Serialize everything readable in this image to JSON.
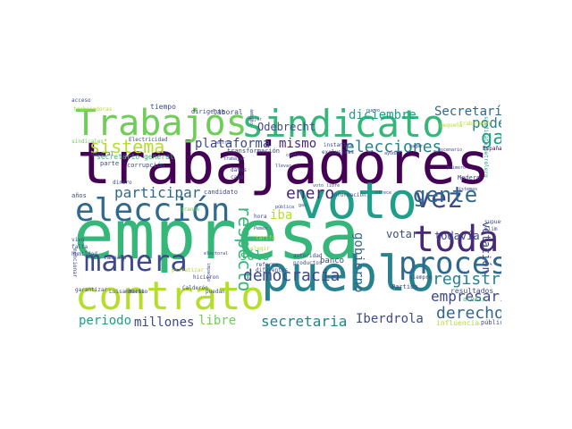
{
  "colors": {
    "dark_purple": "#440154",
    "purple": "#482878",
    "indigo": "#3e4989",
    "blue": "#31688e",
    "teal_blue": "#26828e",
    "teal": "#1f9e89",
    "green": "#35b779",
    "light_green": "#6ece58",
    "lime": "#b5de2b",
    "yellow": "#fde725"
  },
  "words": [
    {
      "text": "trabajadores",
      "color": "#440154"
    },
    {
      "text": "empresa",
      "color": "#35b779"
    },
    {
      "text": "voto",
      "color": "#1f9e89"
    },
    {
      "text": "pueblo",
      "color": "#26828e"
    },
    {
      "text": "sindicato",
      "color": "#35b779"
    },
    {
      "text": "Trabajos",
      "color": "#6ece58"
    },
    {
      "text": "elección",
      "color": "#31688e"
    },
    {
      "text": "contrato",
      "color": "#b5de2b"
    },
    {
      "text": "toda",
      "color": "#482878"
    },
    {
      "text": "proceso",
      "color": "#31688e"
    },
    {
      "text": "vez",
      "color": "#3e4989"
    },
    {
      "text": "gente",
      "color": "#31688e"
    },
    {
      "text": "manera",
      "color": "#3e4989"
    },
    {
      "text": "sistema",
      "color": "#b5de2b"
    },
    {
      "text": "plataforma",
      "color": "#3e4989"
    },
    {
      "text": "mismo",
      "color": "#482878"
    },
    {
      "text": "elecciones",
      "color": "#26828e"
    },
    {
      "text": "gas",
      "color": "#1f9e89"
    },
    {
      "text": "poder",
      "color": "#26828e"
    },
    {
      "text": "Secretaría",
      "color": "#31688e"
    },
    {
      "text": "diciembre",
      "color": "#1f9e89"
    },
    {
      "text": "Odebrecht",
      "color": "#3e4989"
    },
    {
      "text": "participar",
      "color": "#31688e"
    },
    {
      "text": "enero",
      "color": "#482878"
    },
    {
      "text": "respecto",
      "color": "#35b779"
    },
    {
      "text": "iba",
      "color": "#b5de2b"
    },
    {
      "text": "votar",
      "color": "#3e4989"
    },
    {
      "text": "todavía",
      "color": "#3e4989"
    },
    {
      "text": "votación",
      "color": "#3e4989"
    },
    {
      "text": "registro",
      "color": "#26828e"
    },
    {
      "text": "empresario",
      "color": "#3e4989"
    },
    {
      "text": "derecho",
      "color": "#31688e"
    },
    {
      "text": "democracia",
      "color": "#3e4989"
    },
    {
      "text": "sólo",
      "color": "#35b779"
    },
    {
      "text": "gobierno",
      "color": "#31688e"
    },
    {
      "text": "secretaria",
      "color": "#26828e"
    },
    {
      "text": "Iberdrola",
      "color": "#3e4989"
    },
    {
      "text": "millones",
      "color": "#3e4989"
    },
    {
      "text": "libre",
      "color": "#6ece58"
    },
    {
      "text": "periodo",
      "color": "#1f9e89"
    },
    {
      "text": "banco",
      "color": "#3e4989"
    },
    {
      "text": "resultados",
      "color": "#3e4989"
    },
    {
      "text": "acudir",
      "color": "#35b779"
    },
    {
      "text": "público",
      "color": "#3e4989"
    },
    {
      "text": "influencia",
      "color": "#b5de2b"
    },
    {
      "text": "Partido",
      "color": "#3e4989"
    },
    {
      "text": "siempre",
      "color": "#3e4989"
    },
    {
      "text": "trabajadoras",
      "color": "#b5de2b"
    },
    {
      "text": "tiempo",
      "color": "#3e4989"
    },
    {
      "text": "dirigente",
      "color": "#3e4989"
    },
    {
      "text": "laboral",
      "color": "#3e4989"
    },
    {
      "text": "secretario general",
      "color": "#35b779"
    },
    {
      "text": "sindicales",
      "color": "#6ece58"
    },
    {
      "text": "Electricidad",
      "color": "#3e4989"
    },
    {
      "text": "trabajador",
      "color": "#b5de2b"
    },
    {
      "text": "España",
      "color": "#440154"
    },
    {
      "text": "sindicato petrolero",
      "color": "#1f9e89"
    },
    {
      "text": "corrupción",
      "color": "#3e4989"
    },
    {
      "text": "transformación",
      "color": "#3e4989"
    },
    {
      "text": "parte",
      "color": "#3e4989"
    },
    {
      "text": "general",
      "color": "#3e4989"
    },
    {
      "text": "dinero",
      "color": "#3e4989"
    },
    {
      "text": "candidato",
      "color": "#3e4989"
    },
    {
      "text": "datos",
      "color": "#3e4989"
    },
    {
      "text": "cabo",
      "color": "#3e4989"
    },
    {
      "text": "Madero",
      "color": "#3e4989"
    },
    {
      "text": "información",
      "color": "#3e4989"
    },
    {
      "text": "años",
      "color": "#3e4989"
    },
    {
      "text": "vivo",
      "color": "#3e4989"
    },
    {
      "text": "falta",
      "color": "#3e4989"
    },
    {
      "text": "campaña",
      "color": "#3e4989"
    },
    {
      "text": "hora",
      "color": "#3e4989"
    },
    {
      "text": "Luisa María",
      "color": "#3e4989"
    },
    {
      "text": "garantizar",
      "color": "#3e4989"
    },
    {
      "text": "momento",
      "color": "#3e4989"
    },
    {
      "text": "hicieron",
      "color": "#3e4989"
    },
    {
      "text": "Calderón",
      "color": "#3e4989"
    },
    {
      "text": "puedan",
      "color": "#3e4989"
    },
    {
      "text": "autoridad",
      "color": "#3e4989"
    },
    {
      "text": "reforma",
      "color": "#3e4989"
    },
    {
      "text": "diferentes",
      "color": "#3e4989"
    },
    {
      "text": "productos",
      "color": "#3e4989"
    },
    {
      "text": "grande",
      "color": "#6ece58"
    },
    {
      "text": "Slim",
      "color": "#3e4989"
    },
    {
      "text": "supuesto",
      "color": "#3e4989"
    },
    {
      "text": "mejor",
      "color": "#3e4989"
    },
    {
      "text": "ámbito",
      "color": "#3e4989"
    },
    {
      "text": "instantes",
      "color": "#3e4989"
    },
    {
      "text": "exclusivas",
      "color": "#3e4989"
    },
    {
      "text": "pequeña",
      "color": "#b5de2b"
    },
    {
      "text": "privatizar",
      "color": "#b5de2b"
    },
    {
      "text": "elegir",
      "color": "#b5de2b"
    },
    {
      "text": "tarifa",
      "color": "#b5de2b"
    },
    {
      "text": "humildad",
      "color": "#3e4989"
    },
    {
      "text": "mencionar",
      "color": "#3e4989"
    },
    {
      "text": "nuevo",
      "color": "#3e4989"
    },
    {
      "text": "ofrece",
      "color": "#3e4989"
    },
    {
      "text": "ayudar",
      "color": "#3e4989"
    },
    {
      "text": "pagar",
      "color": "#3e4989"
    },
    {
      "text": "escenario",
      "color": "#3e4989"
    },
    {
      "text": "primero",
      "color": "#3e4989"
    },
    {
      "text": "sistemas",
      "color": "#3e4989"
    },
    {
      "text": "electoral",
      "color": "#3e4989"
    },
    {
      "text": "impacto",
      "color": "#3e4989"
    },
    {
      "text": "entrar",
      "color": "#3e4989"
    },
    {
      "text": "Pemex",
      "color": "#3e4989"
    },
    {
      "text": "pública",
      "color": "#3e4989"
    },
    {
      "text": "centro",
      "color": "#3e4989"
    },
    {
      "text": "llevar",
      "color": "#3e4989"
    },
    {
      "text": "trabajar",
      "color": "#3e4989"
    },
    {
      "text": "gas",
      "color": "#3e4989"
    },
    {
      "text": "voto libre",
      "color": "#3e4989"
    },
    {
      "text": "acceso",
      "color": "#3e4989"
    }
  ]
}
